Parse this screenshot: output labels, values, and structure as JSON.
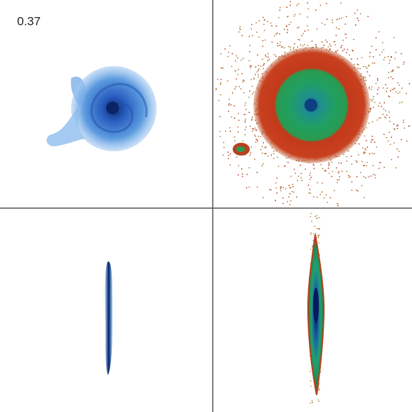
{
  "time_label": "0.37"
}
